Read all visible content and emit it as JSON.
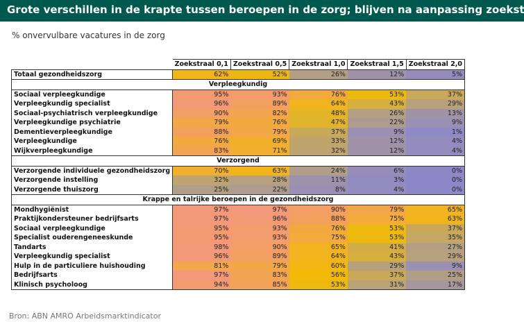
{
  "title": "Grote verschillen in de krapte tussen beroepen in de zorg; blijven na aanpassing zoekstraal",
  "subtitle": "% onvervulbare vacatures in de zorg",
  "source": "Bron: ABN AMRO Arbeidsmarktindicator",
  "chart_data": {
    "type": "heatmap",
    "columns": [
      "Zoekstraal 0,1",
      "Zoekstraal 0,5",
      "Zoekstraal 1,0",
      "Zoekstraal 1,5",
      "Zoekstraal 2,0"
    ],
    "unit": "%",
    "groups": [
      {
        "name": "",
        "rows": [
          {
            "label": "Totaal gezondheidszorg",
            "values": [
              62,
              52,
              26,
              12,
              5
            ]
          }
        ]
      },
      {
        "name": "Verpleegkundig",
        "rows": [
          {
            "label": "Sociaal verpleegkundige",
            "values": [
              95,
              93,
              76,
              53,
              37
            ]
          },
          {
            "label": "Verpleegkundig specialist",
            "values": [
              96,
              89,
              64,
              43,
              29
            ]
          },
          {
            "label": "Sociaal-psychiatrisch verpleegkundige",
            "values": [
              90,
              82,
              48,
              26,
              13
            ]
          },
          {
            "label": "Verpleegkundige psychiatrie",
            "values": [
              79,
              76,
              47,
              22,
              9
            ]
          },
          {
            "label": "Dementieverpleegkundige",
            "values": [
              88,
              79,
              37,
              9,
              1
            ]
          },
          {
            "label": "Verpleegkundige",
            "values": [
              76,
              69,
              33,
              12,
              4
            ]
          },
          {
            "label": "Wijkverpleegkundige",
            "values": [
              83,
              71,
              32,
              12,
              4
            ]
          }
        ]
      },
      {
        "name": "Verzorgend",
        "rows": [
          {
            "label": "Verzorgende individuele gezondheidszorg",
            "values": [
              70,
              63,
              24,
              6,
              0
            ]
          },
          {
            "label": "Verzorgende instelling",
            "values": [
              32,
              28,
              11,
              3,
              0
            ]
          },
          {
            "label": "Verzorgende thuiszorg",
            "values": [
              25,
              22,
              8,
              4,
              0
            ]
          }
        ]
      },
      {
        "name": "Krappe en talrijke beroepen in de gezondheidszorg",
        "rows": [
          {
            "label": "Mondhygiënist",
            "values": [
              97,
              97,
              90,
              79,
              65
            ]
          },
          {
            "label": "Praktijkondersteuner bedrijfsarts",
            "values": [
              97,
              96,
              88,
              75,
              63
            ]
          },
          {
            "label": "Sociaal verpleegkundige",
            "values": [
              95,
              93,
              76,
              53,
              37
            ]
          },
          {
            "label": "Specialist ouderengeneeskunde",
            "values": [
              95,
              93,
              75,
              53,
              35
            ]
          },
          {
            "label": "Tandarts",
            "values": [
              98,
              90,
              65,
              41,
              27
            ]
          },
          {
            "label": "Verpleegkundig specialist",
            "values": [
              96,
              89,
              64,
              43,
              29
            ]
          },
          {
            "label": "Hulp in de particuliere huishouding",
            "values": [
              81,
              79,
              60,
              29,
              9
            ]
          },
          {
            "label": "Bedrijfsarts",
            "values": [
              97,
              83,
              56,
              37,
              25
            ]
          },
          {
            "label": "Klinisch psycholoog",
            "values": [
              94,
              85,
              53,
              31,
              17
            ]
          }
        ]
      }
    ],
    "color_scale": {
      "stops": [
        {
          "value": 0,
          "color": "#8e88c8"
        },
        {
          "value": 30,
          "color": "#b8a27a"
        },
        {
          "value": 55,
          "color": "#f2bb05"
        },
        {
          "value": 100,
          "color": "#f39680"
        }
      ]
    }
  }
}
